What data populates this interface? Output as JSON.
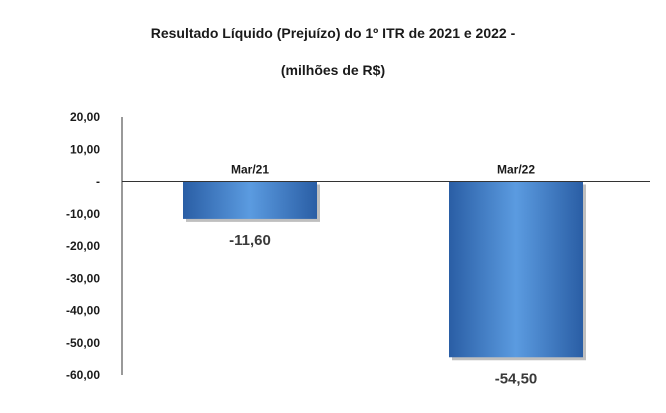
{
  "title_line1": "Resultado Líquido (Prejuízo) do 1º ITR de 2021 e 2022 -",
  "title_line2": "(milhões de R$)",
  "colors": {
    "bar_light": "#5b9be0",
    "bar_mid": "#3f7fcf",
    "bar_dark": "#2a5ea5",
    "axis": "#333333"
  },
  "chart_data": {
    "type": "bar",
    "title": "Resultado Líquido (Prejuízo) do 1º ITR de 2021 e 2022 - (milhões de R$)",
    "categories": [
      "Mar/21",
      "Mar/22"
    ],
    "values": [
      -11.6,
      -54.5
    ],
    "data_labels": [
      "-11,60",
      "-54,50"
    ],
    "ylim": [
      -60,
      20
    ],
    "yticks": [
      20,
      10,
      0,
      -10,
      -20,
      -30,
      -40,
      -50,
      -60
    ],
    "ytick_labels": [
      "20,00",
      "10,00",
      "-",
      "-10,00",
      "-20,00",
      "-30,00",
      "-40,00",
      "-50,00",
      "-60,00"
    ],
    "grid": false,
    "legend": "none"
  }
}
